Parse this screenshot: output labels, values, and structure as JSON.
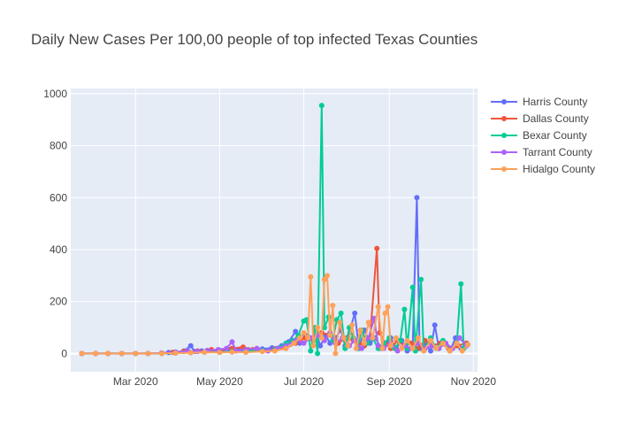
{
  "chart_data": {
    "type": "line",
    "title": "Daily New Cases Per 100,00 people of top infected Texas Counties",
    "xlabel": "",
    "ylabel": "",
    "x_range": [
      "2020-01-14",
      "2020-11-04"
    ],
    "y_range": [
      -70,
      1020
    ],
    "y_ticks": [
      0,
      200,
      400,
      600,
      800,
      1000
    ],
    "y_tick_labels": [
      "0",
      "200",
      "400",
      "600",
      "800",
      "1000"
    ],
    "x_ticks": [
      "2020-03-01",
      "2020-05-01",
      "2020-07-01",
      "2020-09-01",
      "2020-11-01"
    ],
    "x_tick_labels": [
      "Mar 2020",
      "May 2020",
      "Jul 2020",
      "Sep 2020",
      "Nov 2020"
    ],
    "grid": true,
    "legend_position": "top-right",
    "background_color": "#e5ecf6",
    "series": [
      {
        "name": "Harris County",
        "color": "#636efa",
        "points": [
          [
            "2020-01-22",
            0
          ],
          [
            "2020-02-01",
            0
          ],
          [
            "2020-02-10",
            0
          ],
          [
            "2020-02-20",
            0
          ],
          [
            "2020-03-01",
            0
          ],
          [
            "2020-03-10",
            0
          ],
          [
            "2020-03-20",
            2
          ],
          [
            "2020-03-25",
            4
          ],
          [
            "2020-03-30",
            6
          ],
          [
            "2020-04-05",
            10
          ],
          [
            "2020-04-10",
            30
          ],
          [
            "2020-04-13",
            8
          ],
          [
            "2020-04-18",
            10
          ],
          [
            "2020-04-25",
            12
          ],
          [
            "2020-05-01",
            10
          ],
          [
            "2020-05-08",
            15
          ],
          [
            "2020-05-15",
            12
          ],
          [
            "2020-05-22",
            14
          ],
          [
            "2020-06-01",
            18
          ],
          [
            "2020-06-08",
            22
          ],
          [
            "2020-06-15",
            30
          ],
          [
            "2020-06-20",
            45
          ],
          [
            "2020-06-25",
            85
          ],
          [
            "2020-06-28",
            40
          ],
          [
            "2020-07-02",
            70
          ],
          [
            "2020-07-06",
            60
          ],
          [
            "2020-07-10",
            80
          ],
          [
            "2020-07-13",
            30
          ],
          [
            "2020-07-17",
            70
          ],
          [
            "2020-07-20",
            40
          ],
          [
            "2020-07-24",
            60
          ],
          [
            "2020-07-28",
            90
          ],
          [
            "2020-07-31",
            30
          ],
          [
            "2020-08-04",
            100
          ],
          [
            "2020-08-07",
            155
          ],
          [
            "2020-08-10",
            20
          ],
          [
            "2020-08-14",
            90
          ],
          [
            "2020-08-18",
            40
          ],
          [
            "2020-08-22",
            60
          ],
          [
            "2020-08-26",
            20
          ],
          [
            "2020-08-30",
            40
          ],
          [
            "2020-09-02",
            60
          ],
          [
            "2020-09-06",
            20
          ],
          [
            "2020-09-10",
            50
          ],
          [
            "2020-09-14",
            10
          ],
          [
            "2020-09-18",
            30
          ],
          [
            "2020-09-21",
            600
          ],
          [
            "2020-09-23",
            20
          ],
          [
            "2020-09-27",
            40
          ],
          [
            "2020-10-01",
            10
          ],
          [
            "2020-10-04",
            110
          ],
          [
            "2020-10-07",
            20
          ],
          [
            "2020-10-11",
            40
          ],
          [
            "2020-10-15",
            10
          ],
          [
            "2020-10-19",
            60
          ],
          [
            "2020-10-23",
            20
          ],
          [
            "2020-10-27",
            40
          ]
        ]
      },
      {
        "name": "Dallas County",
        "color": "#ef553b",
        "points": [
          [
            "2020-01-22",
            0
          ],
          [
            "2020-02-01",
            0
          ],
          [
            "2020-02-10",
            0
          ],
          [
            "2020-02-20",
            0
          ],
          [
            "2020-03-01",
            0
          ],
          [
            "2020-03-10",
            0
          ],
          [
            "2020-03-20",
            2
          ],
          [
            "2020-03-28",
            5
          ],
          [
            "2020-04-05",
            8
          ],
          [
            "2020-04-15",
            10
          ],
          [
            "2020-04-25",
            15
          ],
          [
            "2020-05-01",
            12
          ],
          [
            "2020-05-10",
            20
          ],
          [
            "2020-05-18",
            25
          ],
          [
            "2020-05-25",
            15
          ],
          [
            "2020-06-01",
            10
          ],
          [
            "2020-06-10",
            18
          ],
          [
            "2020-06-18",
            20
          ],
          [
            "2020-06-25",
            40
          ],
          [
            "2020-07-02",
            60
          ],
          [
            "2020-07-08",
            50
          ],
          [
            "2020-07-14",
            80
          ],
          [
            "2020-07-20",
            70
          ],
          [
            "2020-07-26",
            40
          ],
          [
            "2020-08-01",
            60
          ],
          [
            "2020-08-06",
            50
          ],
          [
            "2020-08-10",
            40
          ],
          [
            "2020-08-14",
            30
          ],
          [
            "2020-08-18",
            60
          ],
          [
            "2020-08-23",
            405
          ],
          [
            "2020-08-25",
            80
          ],
          [
            "2020-08-29",
            40
          ],
          [
            "2020-09-02",
            20
          ],
          [
            "2020-09-07",
            50
          ],
          [
            "2020-09-12",
            30
          ],
          [
            "2020-09-17",
            40
          ],
          [
            "2020-09-22",
            20
          ],
          [
            "2020-09-27",
            50
          ],
          [
            "2020-10-02",
            30
          ],
          [
            "2020-10-08",
            40
          ],
          [
            "2020-10-14",
            20
          ],
          [
            "2020-10-20",
            30
          ],
          [
            "2020-10-27",
            40
          ]
        ]
      },
      {
        "name": "Bexar County",
        "color": "#00cc96",
        "points": [
          [
            "2020-01-22",
            0
          ],
          [
            "2020-02-01",
            0
          ],
          [
            "2020-02-10",
            0
          ],
          [
            "2020-02-20",
            0
          ],
          [
            "2020-03-01",
            0
          ],
          [
            "2020-03-10",
            0
          ],
          [
            "2020-03-20",
            0
          ],
          [
            "2020-03-30",
            2
          ],
          [
            "2020-04-10",
            4
          ],
          [
            "2020-04-20",
            6
          ],
          [
            "2020-05-01",
            5
          ],
          [
            "2020-05-10",
            8
          ],
          [
            "2020-05-20",
            10
          ],
          [
            "2020-06-01",
            12
          ],
          [
            "2020-06-10",
            15
          ],
          [
            "2020-06-18",
            40
          ],
          [
            "2020-06-23",
            50
          ],
          [
            "2020-06-27",
            70
          ],
          [
            "2020-07-01",
            125
          ],
          [
            "2020-07-03",
            130
          ],
          [
            "2020-07-06",
            10
          ],
          [
            "2020-07-09",
            100
          ],
          [
            "2020-07-11",
            0
          ],
          [
            "2020-07-14",
            955
          ],
          [
            "2020-07-16",
            100
          ],
          [
            "2020-07-19",
            140
          ],
          [
            "2020-07-22",
            50
          ],
          [
            "2020-07-25",
            130
          ],
          [
            "2020-07-28",
            155
          ],
          [
            "2020-07-31",
            20
          ],
          [
            "2020-08-03",
            100
          ],
          [
            "2020-08-06",
            60
          ],
          [
            "2020-08-09",
            20
          ],
          [
            "2020-08-12",
            90
          ],
          [
            "2020-08-16",
            40
          ],
          [
            "2020-08-20",
            60
          ],
          [
            "2020-08-24",
            20
          ],
          [
            "2020-08-28",
            40
          ],
          [
            "2020-09-01",
            60
          ],
          [
            "2020-09-05",
            20
          ],
          [
            "2020-09-09",
            50
          ],
          [
            "2020-09-12",
            170
          ],
          [
            "2020-09-14",
            20
          ],
          [
            "2020-09-18",
            255
          ],
          [
            "2020-09-20",
            10
          ],
          [
            "2020-09-24",
            285
          ],
          [
            "2020-09-26",
            10
          ],
          [
            "2020-10-01",
            60
          ],
          [
            "2020-10-05",
            20
          ],
          [
            "2020-10-10",
            50
          ],
          [
            "2020-10-15",
            10
          ],
          [
            "2020-10-20",
            40
          ],
          [
            "2020-10-23",
            268
          ],
          [
            "2020-10-25",
            20
          ],
          [
            "2020-10-28",
            35
          ]
        ]
      },
      {
        "name": "Tarrant County",
        "color": "#ab63fa",
        "points": [
          [
            "2020-01-22",
            0
          ],
          [
            "2020-02-01",
            0
          ],
          [
            "2020-02-10",
            0
          ],
          [
            "2020-02-20",
            0
          ],
          [
            "2020-03-01",
            0
          ],
          [
            "2020-03-10",
            0
          ],
          [
            "2020-03-20",
            2
          ],
          [
            "2020-03-30",
            5
          ],
          [
            "2020-04-08",
            10
          ],
          [
            "2020-04-15",
            8
          ],
          [
            "2020-04-22",
            12
          ],
          [
            "2020-04-30",
            15
          ],
          [
            "2020-05-06",
            20
          ],
          [
            "2020-05-10",
            45
          ],
          [
            "2020-05-13",
            10
          ],
          [
            "2020-05-20",
            15
          ],
          [
            "2020-05-28",
            20
          ],
          [
            "2020-06-05",
            10
          ],
          [
            "2020-06-12",
            20
          ],
          [
            "2020-06-18",
            30
          ],
          [
            "2020-06-25",
            50
          ],
          [
            "2020-07-01",
            40
          ],
          [
            "2020-07-06",
            60
          ],
          [
            "2020-07-11",
            70
          ],
          [
            "2020-07-16",
            50
          ],
          [
            "2020-07-20",
            80
          ],
          [
            "2020-07-24",
            40
          ],
          [
            "2020-07-29",
            60
          ],
          [
            "2020-08-03",
            30
          ],
          [
            "2020-08-07",
            50
          ],
          [
            "2020-08-12",
            20
          ],
          [
            "2020-08-17",
            60
          ],
          [
            "2020-08-21",
            135
          ],
          [
            "2020-08-24",
            30
          ],
          [
            "2020-08-28",
            20
          ],
          [
            "2020-09-02",
            40
          ],
          [
            "2020-09-07",
            10
          ],
          [
            "2020-09-12",
            30
          ],
          [
            "2020-09-17",
            20
          ],
          [
            "2020-09-22",
            40
          ],
          [
            "2020-09-27",
            20
          ],
          [
            "2020-10-02",
            30
          ],
          [
            "2020-10-07",
            20
          ],
          [
            "2020-10-12",
            40
          ],
          [
            "2020-10-17",
            20
          ],
          [
            "2020-10-22",
            60
          ],
          [
            "2020-10-27",
            30
          ]
        ]
      },
      {
        "name": "Hidalgo County",
        "color": "#ffa15a",
        "points": [
          [
            "2020-01-22",
            0
          ],
          [
            "2020-02-01",
            0
          ],
          [
            "2020-02-10",
            0
          ],
          [
            "2020-02-20",
            0
          ],
          [
            "2020-03-01",
            0
          ],
          [
            "2020-03-10",
            0
          ],
          [
            "2020-03-20",
            0
          ],
          [
            "2020-03-30",
            2
          ],
          [
            "2020-04-10",
            3
          ],
          [
            "2020-04-20",
            5
          ],
          [
            "2020-05-01",
            4
          ],
          [
            "2020-05-10",
            6
          ],
          [
            "2020-05-20",
            5
          ],
          [
            "2020-06-01",
            8
          ],
          [
            "2020-06-10",
            10
          ],
          [
            "2020-06-18",
            20
          ],
          [
            "2020-06-24",
            40
          ],
          [
            "2020-06-28",
            60
          ],
          [
            "2020-07-01",
            80
          ],
          [
            "2020-07-04",
            60
          ],
          [
            "2020-07-06",
            295
          ],
          [
            "2020-07-08",
            30
          ],
          [
            "2020-07-11",
            100
          ],
          [
            "2020-07-14",
            60
          ],
          [
            "2020-07-16",
            285
          ],
          [
            "2020-07-18",
            300
          ],
          [
            "2020-07-20",
            70
          ],
          [
            "2020-07-22",
            185
          ],
          [
            "2020-07-24",
            0
          ],
          [
            "2020-07-27",
            120
          ],
          [
            "2020-07-30",
            60
          ],
          [
            "2020-08-02",
            30
          ],
          [
            "2020-08-05",
            110
          ],
          [
            "2020-08-08",
            20
          ],
          [
            "2020-08-11",
            90
          ],
          [
            "2020-08-14",
            40
          ],
          [
            "2020-08-17",
            120
          ],
          [
            "2020-08-20",
            60
          ],
          [
            "2020-08-24",
            180
          ],
          [
            "2020-08-27",
            20
          ],
          [
            "2020-08-29",
            155
          ],
          [
            "2020-08-31",
            180
          ],
          [
            "2020-09-02",
            30
          ],
          [
            "2020-09-06",
            60
          ],
          [
            "2020-09-10",
            20
          ],
          [
            "2020-09-14",
            50
          ],
          [
            "2020-09-18",
            20
          ],
          [
            "2020-09-22",
            60
          ],
          [
            "2020-09-26",
            10
          ],
          [
            "2020-10-01",
            50
          ],
          [
            "2020-10-05",
            20
          ],
          [
            "2020-10-10",
            40
          ],
          [
            "2020-10-15",
            10
          ],
          [
            "2020-10-20",
            40
          ],
          [
            "2020-10-24",
            10
          ],
          [
            "2020-10-28",
            35
          ]
        ]
      }
    ]
  }
}
